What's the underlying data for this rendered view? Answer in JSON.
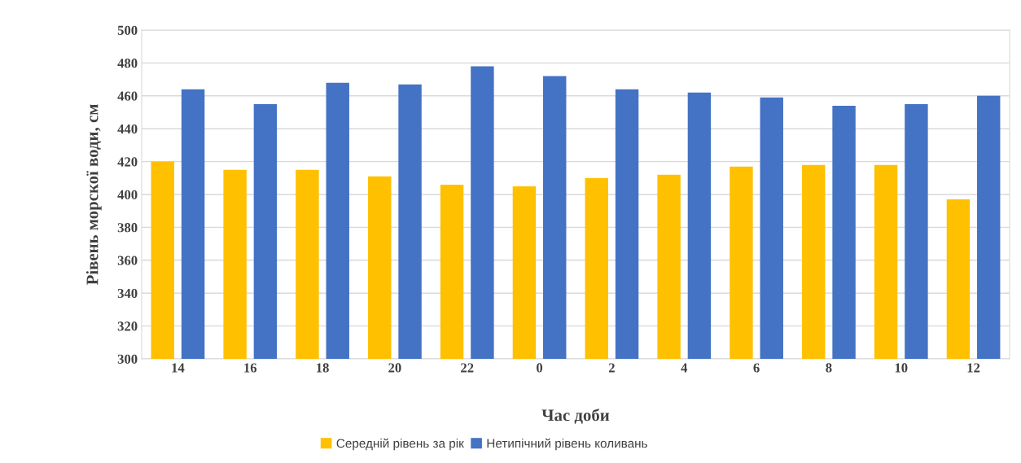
{
  "chart_data": {
    "type": "bar",
    "xlabel": "Час доби",
    "ylabel": "Рівень морскої води, см",
    "categories": [
      "14",
      "16",
      "18",
      "20",
      "22",
      "0",
      "2",
      "4",
      "6",
      "8",
      "10",
      "12"
    ],
    "series": [
      {
        "name": "Середній рівень за рік",
        "color": "#ffc000",
        "values": [
          420,
          415,
          415,
          411,
          406,
          405,
          410,
          412,
          417,
          418,
          418,
          397
        ]
      },
      {
        "name": "Нетипічний рівень коливань",
        "color": "#4472c4",
        "values": [
          464,
          455,
          468,
          467,
          478,
          472,
          464,
          462,
          459,
          454,
          455,
          460
        ]
      }
    ],
    "ylim": [
      300,
      500
    ],
    "yticks": [
      300,
      320,
      340,
      360,
      380,
      400,
      420,
      440,
      460,
      480,
      500
    ],
    "grid": "y",
    "legend": "bottom"
  }
}
